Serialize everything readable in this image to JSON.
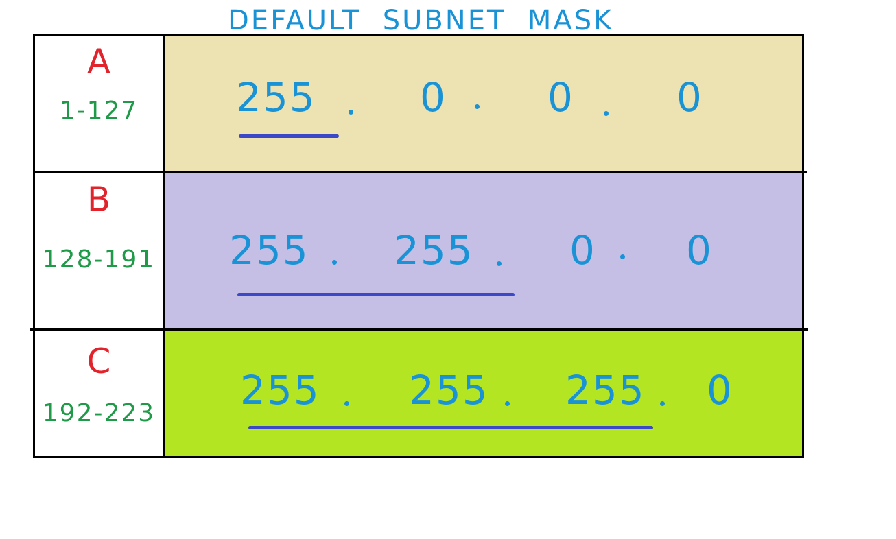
{
  "title": "DEFAULT  SUBNET  MASK",
  "colors": {
    "title": "#1a93d6",
    "class_letter": "#e3232b",
    "class_range": "#1f9a48",
    "mask_text": "#1a93d6",
    "underline": "#3b49c9",
    "row_a_bg": "#ede3b2",
    "row_b_bg": "#c6bfe5",
    "row_c_bg": "#b3e523"
  },
  "rows": [
    {
      "class": "A",
      "range": "1-127",
      "octets": [
        "255",
        "0",
        "0",
        "0"
      ],
      "network_octets": 1
    },
    {
      "class": "B",
      "range": "128-191",
      "octets": [
        "255",
        "255",
        "0",
        "0"
      ],
      "network_octets": 2
    },
    {
      "class": "C",
      "range": "192-223",
      "octets": [
        "255",
        "255",
        "255",
        "0"
      ],
      "network_octets": 3
    }
  ]
}
